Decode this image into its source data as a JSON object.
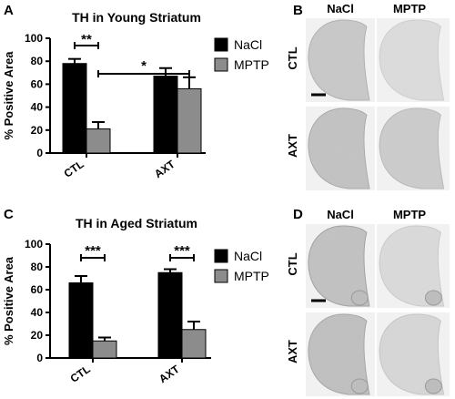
{
  "panels": {
    "A": "A",
    "B": "B",
    "C": "C",
    "D": "D"
  },
  "micrograph_columns": [
    "NaCl",
    "MPTP"
  ],
  "micrograph_rows": [
    "CTL",
    "AXT"
  ],
  "colors": {
    "NaCl": "#000000",
    "MPTP": "#8c8c8c"
  },
  "chart_data": [
    {
      "type": "bar",
      "title": "TH in Young Striatum",
      "ylabel": "% Positive Area",
      "xlabel": "",
      "categories": [
        "CTL",
        "AXT"
      ],
      "ylim": [
        0,
        100
      ],
      "yticks": [
        0,
        20,
        40,
        60,
        80,
        100
      ],
      "series": [
        {
          "name": "NaCl",
          "values": [
            78,
            67
          ],
          "errors": [
            4,
            7
          ]
        },
        {
          "name": "MPTP",
          "values": [
            21,
            56
          ],
          "errors": [
            6,
            10
          ]
        }
      ],
      "significance": [
        {
          "label": "**",
          "between": "CTL NaCl vs CTL MPTP"
        },
        {
          "label": "*",
          "between": "CTL MPTP vs AXT MPTP"
        }
      ],
      "legend": "right"
    },
    {
      "type": "bar",
      "title": "TH in Aged Striatum",
      "ylabel": "% Positive Area",
      "xlabel": "",
      "categories": [
        "CTL",
        "AXT"
      ],
      "ylim": [
        0,
        100
      ],
      "yticks": [
        0,
        20,
        40,
        60,
        80,
        100
      ],
      "series": [
        {
          "name": "NaCl",
          "values": [
            66,
            75
          ],
          "errors": [
            6,
            3
          ]
        },
        {
          "name": "MPTP",
          "values": [
            15,
            25
          ],
          "errors": [
            3,
            7
          ]
        }
      ],
      "significance": [
        {
          "label": "***",
          "between": "CTL NaCl vs CTL MPTP"
        },
        {
          "label": "***",
          "between": "AXT NaCl vs AXT MPTP"
        }
      ],
      "legend": "right"
    }
  ]
}
